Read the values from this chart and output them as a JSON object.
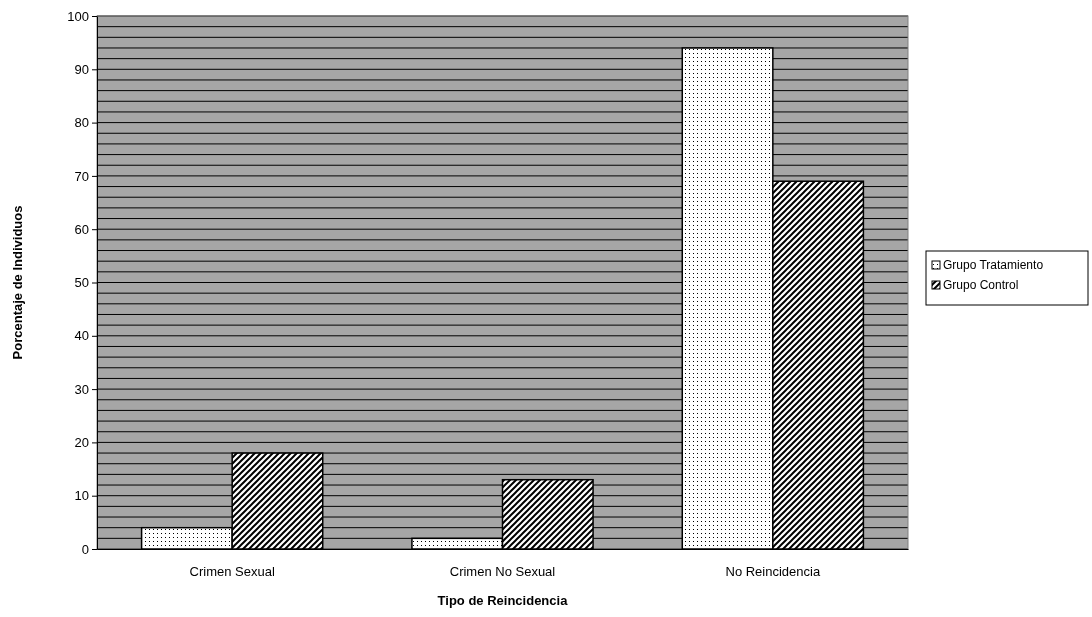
{
  "chart_data": {
    "type": "bar",
    "xlabel": "Tipo de Reincidencia",
    "ylabel": "Porcentaje de Individuos",
    "categories": [
      "Crimen Sexual",
      "Crimen No Sexual",
      "No Reincidencia"
    ],
    "series": [
      {
        "name": "Grupo Tratamiento",
        "color": "#000000",
        "values": [
          4,
          2,
          94
        ]
      },
      {
        "name": "Grupo Control",
        "color": "#000000",
        "values": [
          18,
          13,
          69
        ]
      }
    ],
    "ylim": [
      0,
      100
    ],
    "yticks": [
      0,
      {
        "value": 2,
        "label": null
      },
      {
        "value": 4,
        "label": null
      },
      {
        "value": 6,
        "label": null
      },
      {
        "value": 8,
        "label": null
      },
      10,
      {
        "value": 12,
        "label": null
      },
      {
        "value": 14,
        "label": null
      },
      {
        "value": 16,
        "label": null
      },
      {
        "value": 18,
        "label": null
      },
      20,
      {
        "value": 22,
        "label": null
      },
      {
        "value": 24,
        "label": null
      },
      {
        "value": 26,
        "label": null
      },
      {
        "value": 28,
        "label": null
      },
      30,
      {
        "value": 32,
        "label": null
      },
      {
        "value": 34,
        "label": null
      },
      {
        "value": 36,
        "label": null
      },
      {
        "value": 38,
        "label": null
      },
      40,
      {
        "value": 42,
        "label": null
      },
      {
        "value": 44,
        "label": null
      },
      {
        "value": 46,
        "label": null
      },
      {
        "value": 48,
        "label": null
      },
      50,
      {
        "value": 52,
        "label": null
      },
      {
        "value": 54,
        "label": null
      },
      {
        "value": 56,
        "label": null
      },
      {
        "value": 58,
        "label": null
      },
      60,
      {
        "value": 62,
        "label": null
      },
      {
        "value": 64,
        "label": null
      },
      {
        "value": 66,
        "label": null
      },
      {
        "value": 68,
        "label": null
      },
      70,
      {
        "value": 72,
        "label": null
      },
      {
        "value": 74,
        "label": null
      },
      {
        "value": 76,
        "label": null
      },
      {
        "value": 78,
        "label": null
      },
      80,
      {
        "value": 82,
        "label": null
      },
      {
        "value": 84,
        "label": null
      },
      {
        "value": 86,
        "label": null
      },
      {
        "value": 88,
        "label": null
      },
      90,
      {
        "value": 92,
        "label": null
      },
      {
        "value": 94,
        "label": null
      },
      {
        "value": 96,
        "label": null
      },
      {
        "value": 98,
        "label": null
      },
      100
    ],
    "grid": "y",
    "legend": "right"
  }
}
